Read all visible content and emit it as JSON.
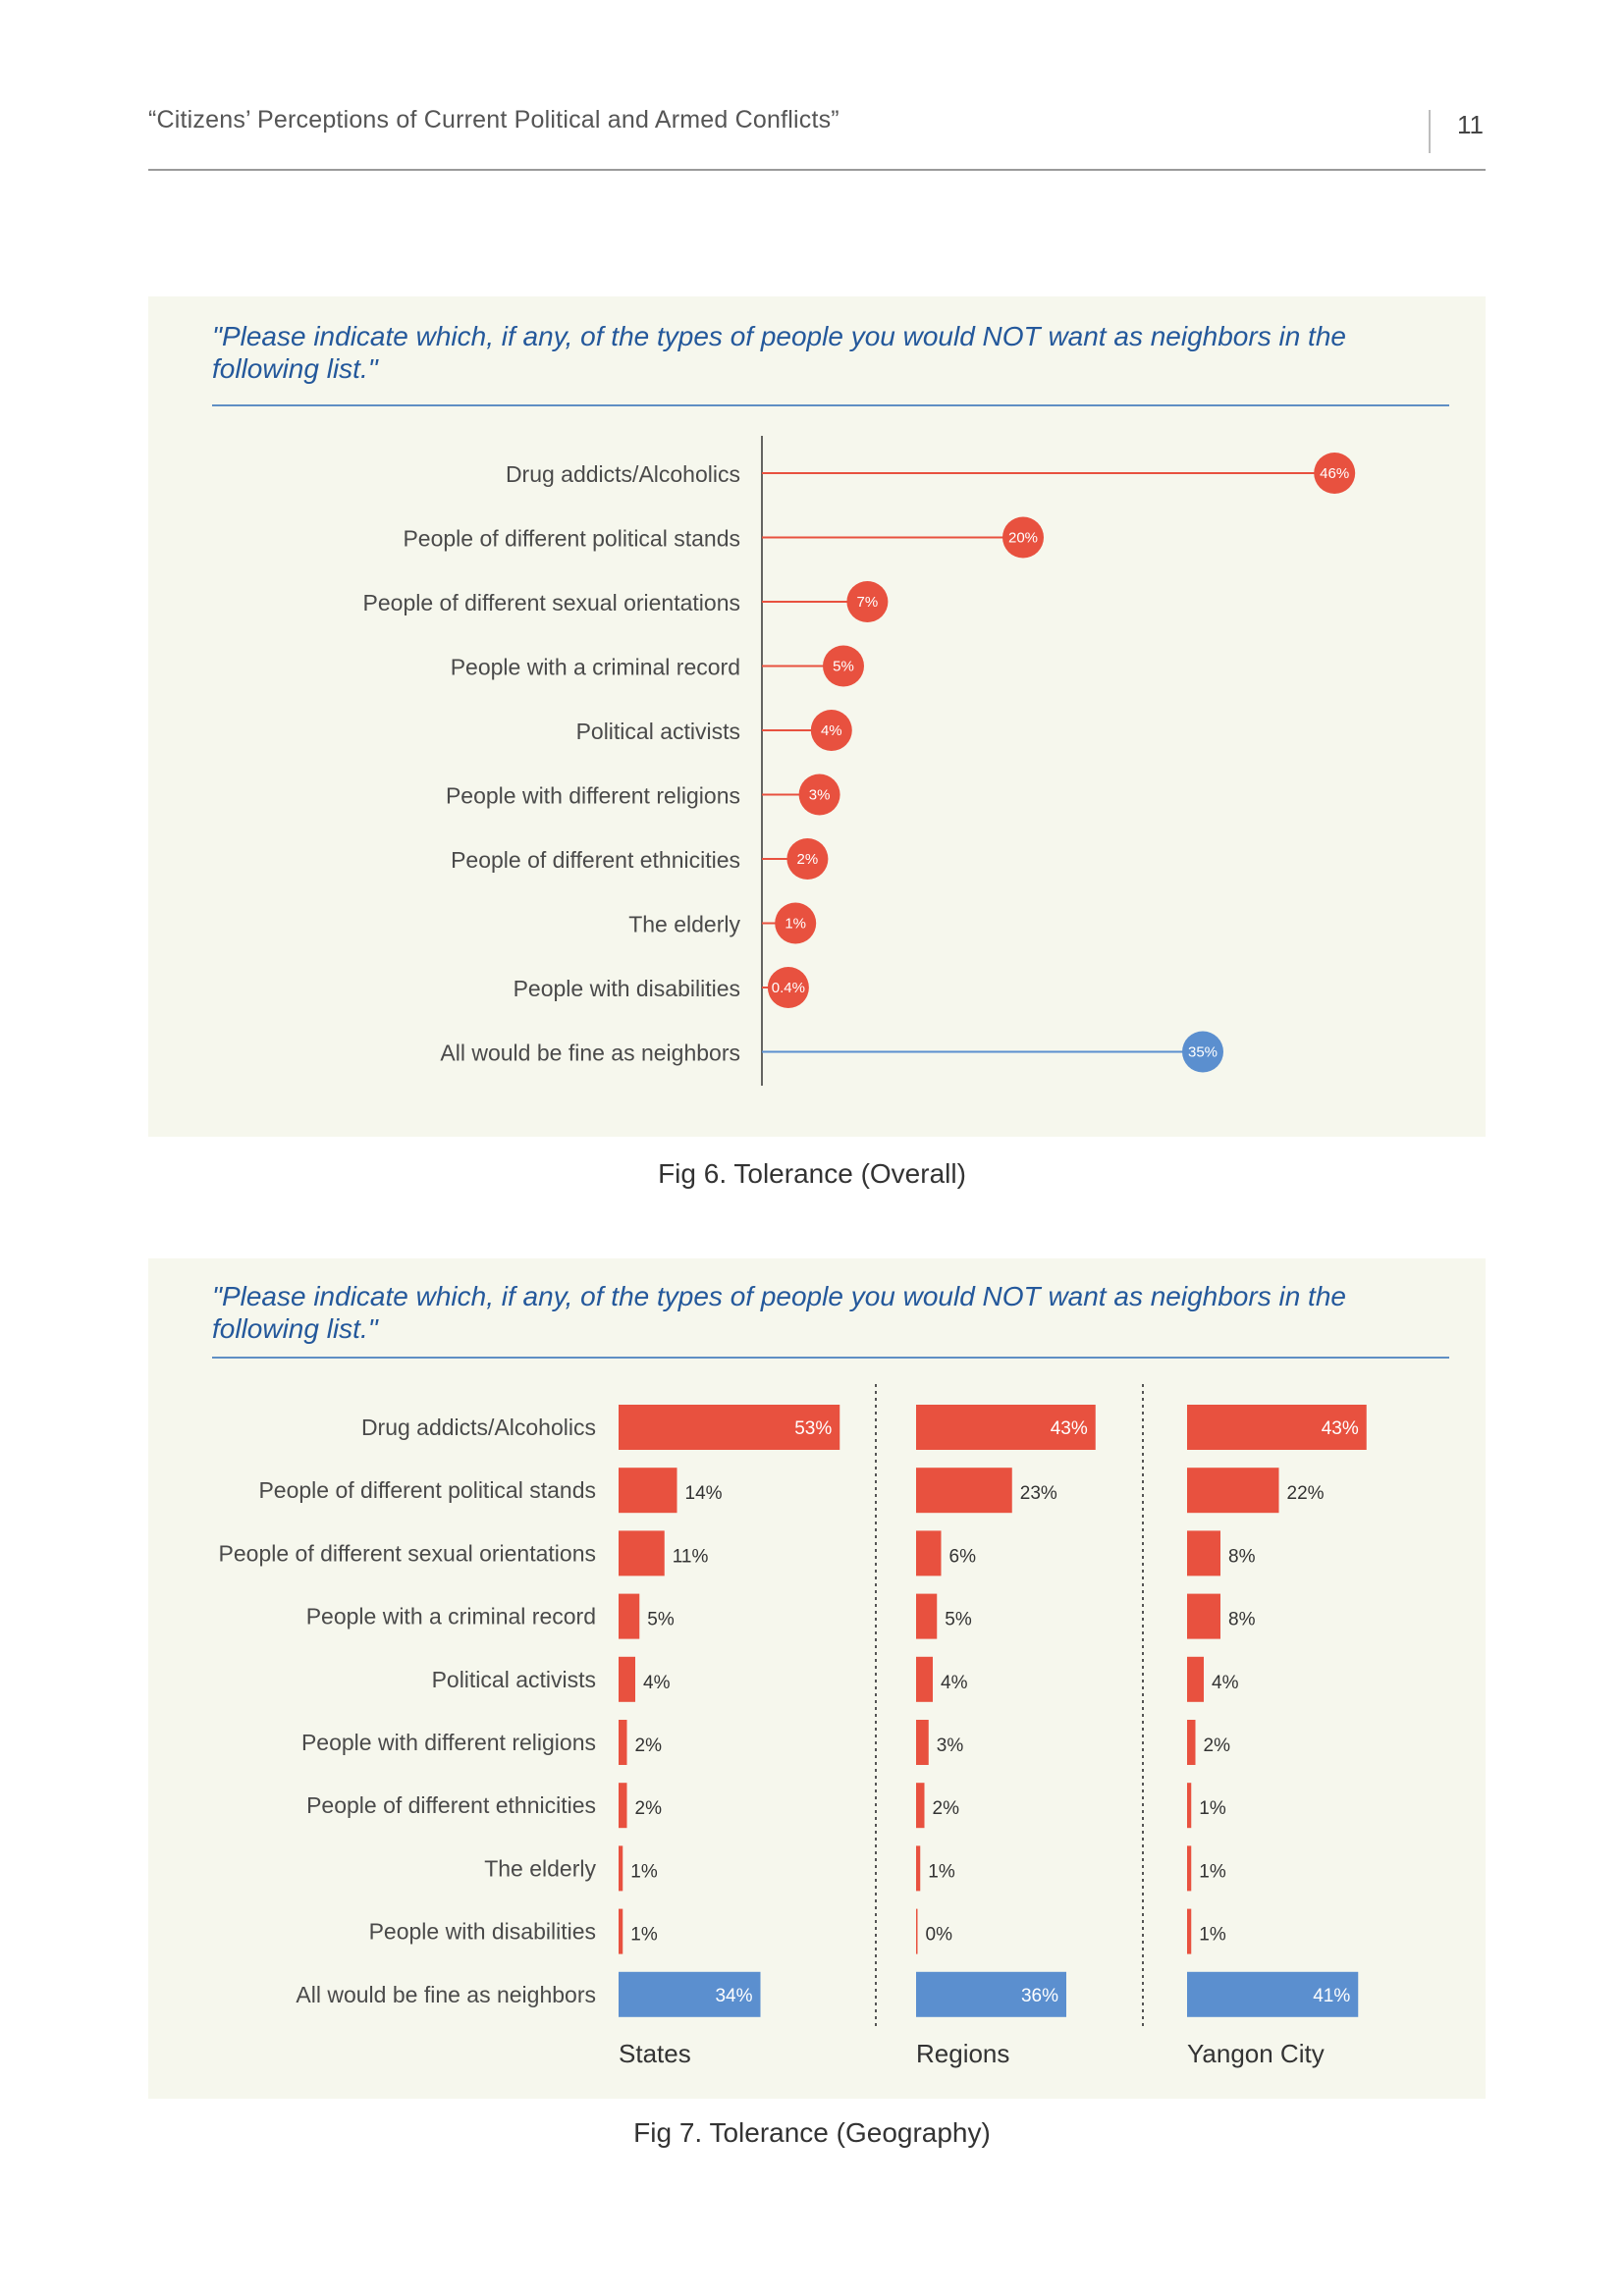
{
  "header": {
    "title": "“Citizens’ Perceptions of Current Political and Armed Conflicts”",
    "page_number": "11"
  },
  "colors": {
    "red": "#e8513f",
    "blue": "#5b8fcf",
    "panel_bg": "#f6f7ed",
    "question": "#24589b"
  },
  "fig6": {
    "question": "\"Please indicate which, if any, of the types of people you would NOT want as neighbors in the following list.\"",
    "caption": "Fig 6. Tolerance (Overall)"
  },
  "fig7": {
    "question": "\"Please indicate which, if any, of the types of people you would NOT want as neighbors in the following list.\"",
    "caption": "Fig 7. Tolerance (Geography)"
  },
  "chart_data": [
    {
      "type": "lollipop",
      "categories": [
        "Drug addicts/Alcoholics",
        "People of different political stands",
        "People of different sexual orientations",
        "People with a criminal record",
        "Political activists",
        "People with different religions",
        "People of different ethnicities",
        "The elderly",
        "People with disabilities",
        "All would be fine as neighbors"
      ],
      "values": [
        46,
        20,
        7,
        5,
        4,
        3,
        2,
        1,
        0.4,
        35
      ],
      "labels": [
        "46%",
        "20%",
        "7%",
        "5%",
        "4%",
        "3%",
        "2%",
        "1%",
        "0.4%",
        "35%"
      ],
      "highlight_last": true
    },
    {
      "type": "bar",
      "orientation": "horizontal",
      "categories": [
        "Drug addicts/Alcoholics",
        "People of different political stands",
        "People of different sexual orientations",
        "People with a criminal record",
        "Political activists",
        "People with different religions",
        "People of different ethnicities",
        "The elderly",
        "People with disabilities",
        "All would be fine as neighbors"
      ],
      "series": [
        {
          "name": "States",
          "values": [
            53,
            14,
            11,
            5,
            4,
            2,
            2,
            1,
            1,
            34
          ],
          "labels": [
            "53%",
            "14%",
            "11%",
            "5%",
            "4%",
            "2%",
            "2%",
            "1%",
            "1%",
            "34%"
          ]
        },
        {
          "name": "Regions",
          "values": [
            43,
            23,
            6,
            5,
            4,
            3,
            2,
            1,
            0,
            36
          ],
          "labels": [
            "43%",
            "23%",
            "6%",
            "5%",
            "4%",
            "3%",
            "2%",
            "1%",
            "0%",
            "36%"
          ]
        },
        {
          "name": "Yangon City",
          "values": [
            43,
            22,
            8,
            8,
            4,
            2,
            1,
            1,
            1,
            41
          ],
          "labels": [
            "43%",
            "22%",
            "8%",
            "8%",
            "4%",
            "2%",
            "1%",
            "1%",
            "1%",
            "41%"
          ]
        }
      ],
      "highlight_last": true
    }
  ]
}
